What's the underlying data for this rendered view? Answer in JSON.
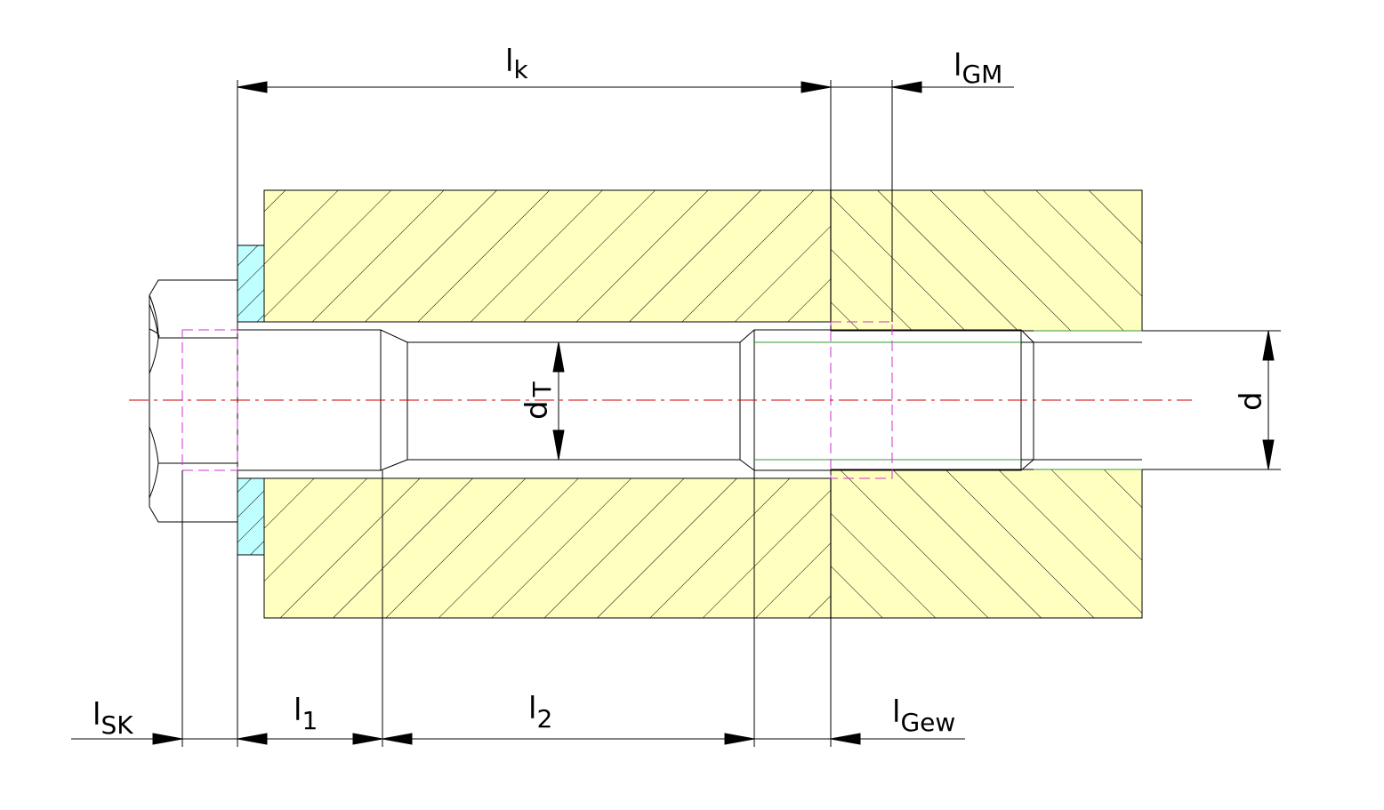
{
  "labels": {
    "lk": {
      "base": "l",
      "sub": "k"
    },
    "lgm": {
      "base": "l",
      "sub": "GM"
    },
    "lsk": {
      "base": "l",
      "sub": "SK"
    },
    "l1": {
      "base": "l",
      "sub": "1"
    },
    "l2": {
      "base": "l",
      "sub": "2"
    },
    "lgew": {
      "base": "l",
      "sub": "Gew"
    },
    "dt": {
      "base": "d",
      "sub": "T"
    },
    "d": {
      "base": "d"
    }
  },
  "colors": {
    "part_fill": "#ffffc0",
    "washer_fill": "#c0ffff",
    "hidden_line": "#cc33cc",
    "center_line": "#cc0000",
    "thread_line": "#339933",
    "line": "#000000"
  }
}
